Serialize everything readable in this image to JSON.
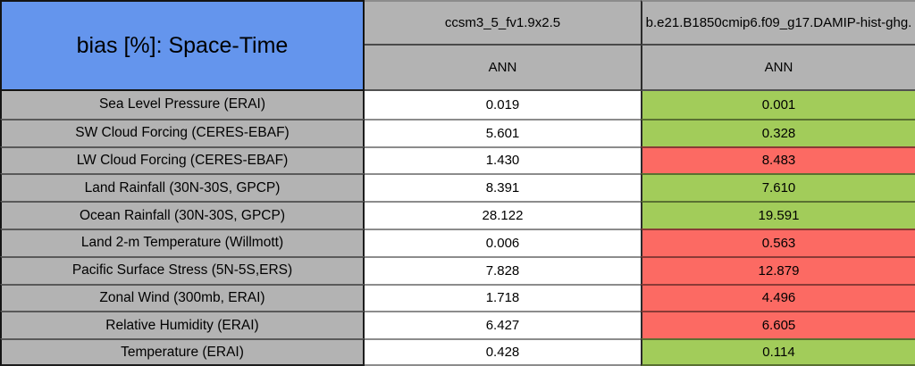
{
  "table": {
    "title": "bias [%]: Space-Time",
    "season_label": "ANN",
    "models": [
      "ccsm3_5_fv1.9x2.5",
      "b.e21.B1850cmip6.f09_g17.DAMIP-hist-ghg."
    ],
    "colors": {
      "better": "#A2CC5A",
      "worse": "#FC6A63",
      "baseline": "#FFFFFF",
      "header_blue": "#6495ED",
      "label_gray": "#B3B3B3"
    },
    "rows": [
      {
        "label": "Sea Level Pressure (ERAI)",
        "values": [
          "0.019",
          "0.001"
        ],
        "status": "better"
      },
      {
        "label": "SW Cloud Forcing (CERES-EBAF)",
        "values": [
          "5.601",
          "0.328"
        ],
        "status": "better"
      },
      {
        "label": "LW Cloud Forcing (CERES-EBAF)",
        "values": [
          "1.430",
          "8.483"
        ],
        "status": "worse"
      },
      {
        "label": "Land Rainfall (30N-30S, GPCP)",
        "values": [
          "8.391",
          "7.610"
        ],
        "status": "better"
      },
      {
        "label": "Ocean Rainfall (30N-30S, GPCP)",
        "values": [
          "28.122",
          "19.591"
        ],
        "status": "better"
      },
      {
        "label": "Land 2-m Temperature (Willmott)",
        "values": [
          "0.006",
          "0.563"
        ],
        "status": "worse"
      },
      {
        "label": "Pacific Surface Stress (5N-5S,ERS)",
        "values": [
          "7.828",
          "12.879"
        ],
        "status": "worse"
      },
      {
        "label": "Zonal Wind (300mb, ERAI)",
        "values": [
          "1.718",
          "4.496"
        ],
        "status": "worse"
      },
      {
        "label": "Relative Humidity (ERAI)",
        "values": [
          "6.427",
          "6.605"
        ],
        "status": "worse"
      },
      {
        "label": "Temperature (ERAI)",
        "values": [
          "0.428",
          "0.114"
        ],
        "status": "better"
      }
    ]
  },
  "chart_data": {
    "type": "table",
    "title": "bias [%]: Space-Time",
    "row_labels": [
      "Sea Level Pressure (ERAI)",
      "SW Cloud Forcing (CERES-EBAF)",
      "LW Cloud Forcing (CERES-EBAF)",
      "Land Rainfall (30N-30S, GPCP)",
      "Ocean Rainfall (30N-30S, GPCP)",
      "Land 2-m Temperature (Willmott)",
      "Pacific Surface Stress (5N-5S,ERS)",
      "Zonal Wind (300mb, ERAI)",
      "Relative Humidity (ERAI)",
      "Temperature (ERAI)"
    ],
    "series": [
      {
        "name": "ccsm3_5_fv1.9x2.5",
        "season": "ANN",
        "values": [
          0.019,
          5.601,
          1.43,
          8.391,
          28.122,
          0.006,
          7.828,
          1.718,
          6.427,
          0.428
        ]
      },
      {
        "name": "b.e21.B1850cmip6.f09_g17.DAMIP-hist-ghg.",
        "season": "ANN",
        "values": [
          0.001,
          0.328,
          8.483,
          7.61,
          19.591,
          0.563,
          12.879,
          4.496,
          6.605,
          0.114
        ]
      }
    ],
    "cell_highlight_second_series": [
      "better",
      "better",
      "worse",
      "better",
      "better",
      "worse",
      "worse",
      "worse",
      "worse",
      "better"
    ]
  }
}
